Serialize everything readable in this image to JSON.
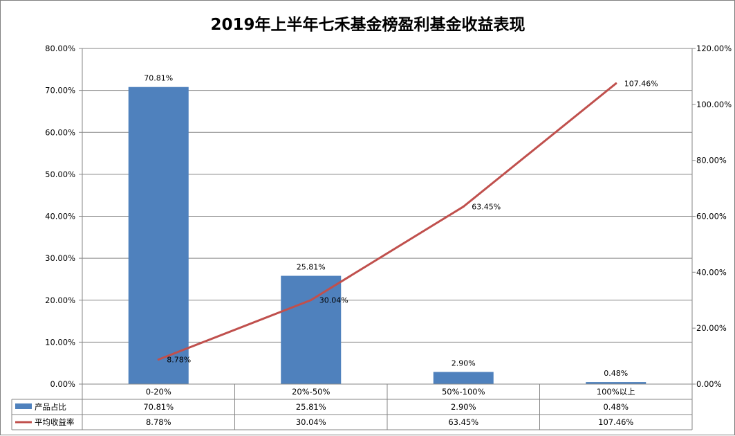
{
  "chart_data": {
    "type": "bar",
    "title": "2019年上半年七禾基金榜盈利基金收益表现",
    "categories": [
      "0-20%",
      "20%-50%",
      "50%-100%",
      "100%以上"
    ],
    "series": [
      {
        "name": "产品占比",
        "type": "bar",
        "axis": "left",
        "color": "#4F81BD",
        "values": [
          70.81,
          25.81,
          2.9,
          0.48
        ],
        "labels": [
          "70.81%",
          "25.81%",
          "2.90%",
          "0.48%"
        ]
      },
      {
        "name": "平均收益率",
        "type": "line",
        "axis": "right",
        "color": "#C0504D",
        "values": [
          8.78,
          30.04,
          63.45,
          107.46
        ],
        "labels": [
          "8.78%",
          "30.04%",
          "63.45%",
          "107.46%"
        ]
      }
    ],
    "y_left": {
      "range": [
        0,
        80
      ],
      "ticks": [
        "0.00%",
        "10.00%",
        "20.00%",
        "30.00%",
        "40.00%",
        "50.00%",
        "60.00%",
        "70.00%",
        "80.00%"
      ]
    },
    "y_right": {
      "range": [
        0,
        120
      ],
      "ticks": [
        "0.00%",
        "20.00%",
        "40.00%",
        "60.00%",
        "80.00%",
        "100.00%",
        "120.00%"
      ]
    },
    "grid": true,
    "legend": "data-table-bottom"
  }
}
